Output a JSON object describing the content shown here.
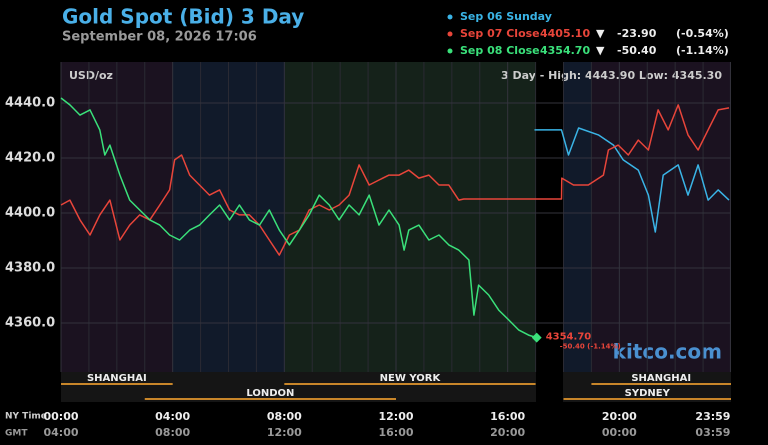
{
  "chart_data": {
    "type": "line",
    "title": "Gold Spot (Bid) 3 Day",
    "subtitle": "September 08, 2026 17:06",
    "unit_label": "USD/oz",
    "high_low_label": "3 Day - High: 4443.90  Low: 4345.30",
    "watermark": "kitco.com",
    "last_label": "4354.70",
    "last_change": "-50.40 (-1.14%)",
    "x_row_label": "NY Time",
    "x2_row_label": "GMT",
    "xlim": [
      0,
      24
    ],
    "ylim": [
      4342.2,
      4454.9
    ],
    "yticks": [
      {
        "value": 4360,
        "label": "4360.0"
      },
      {
        "value": 4380,
        "label": "4380.0"
      },
      {
        "value": 4400,
        "label": "4400.0"
      },
      {
        "value": 4420,
        "label": "4420.0"
      },
      {
        "value": 4440,
        "label": "4440.0"
      }
    ],
    "xticks": [
      {
        "value": 0,
        "label": "00:00"
      },
      {
        "value": 4,
        "label": "04:00"
      },
      {
        "value": 8,
        "label": "08:00"
      },
      {
        "value": 12,
        "label": "12:00"
      },
      {
        "value": 16,
        "label": "16:00"
      },
      {
        "value": 20,
        "label": "20:00"
      },
      {
        "value": 23.98,
        "label": "23:59"
      }
    ],
    "x2ticks": [
      {
        "value": 0,
        "label": "04:00"
      },
      {
        "value": 4,
        "label": "08:00"
      },
      {
        "value": 8,
        "label": "12:00"
      },
      {
        "value": 12,
        "label": "16:00"
      },
      {
        "value": 16,
        "label": "20:00"
      },
      {
        "value": 20,
        "label": "00:00"
      },
      {
        "value": 23.98,
        "label": "03:59"
      }
    ],
    "xminor": [
      1,
      2,
      3,
      5,
      6,
      7,
      9,
      10,
      11,
      13,
      14,
      15,
      17,
      18,
      19,
      21,
      22,
      23
    ],
    "grid": true,
    "session_color": "#c8862a",
    "sessions": [
      {
        "name": "SHANGHAI",
        "start": 0,
        "end": 4,
        "row": 1
      },
      {
        "name": "LONDON",
        "start": 3,
        "end": 12,
        "row": 2
      },
      {
        "name": "NEW YORK",
        "start": 8,
        "end": 17,
        "row": 1
      },
      {
        "name": "SHANGHAI",
        "start": 19,
        "end": 24,
        "row": 1
      },
      {
        "name": "SYDNEY",
        "start": 18,
        "end": 24,
        "row": 2
      }
    ],
    "series": [
      {
        "name": "Sep 06 Sunday",
        "color": "#3ab4e6",
        "x": [
          16.96,
          17.93,
          18.18,
          18.54,
          19.25,
          19.79,
          20.14,
          20.68,
          21.04,
          21.29,
          21.57,
          22.11,
          22.46,
          22.82,
          23.18,
          23.54,
          23.93
        ],
        "values": [
          4430.2,
          4430.2,
          4421.1,
          4430.9,
          4428.4,
          4424.7,
          4419.3,
          4415.6,
          4406.5,
          4393.1,
          4413.8,
          4417.5,
          4406.5,
          4417.5,
          4404.7,
          4408.4,
          4404.7
        ]
      },
      {
        "name": "Sep 07 Close",
        "color": "#e8453a",
        "close": "4405.10",
        "arrow": "▼",
        "change": "-23.90",
        "change_pct": "(-0.54%)",
        "x": [
          0,
          0.32,
          0.68,
          1.04,
          1.39,
          1.75,
          2.11,
          2.46,
          2.82,
          3.18,
          3.54,
          3.89,
          4.07,
          4.32,
          4.61,
          4.96,
          5.32,
          5.68,
          6.04,
          6.39,
          6.75,
          7.11,
          7.46,
          7.82,
          8.18,
          8.54,
          8.89,
          9.25,
          9.61,
          9.96,
          10.32,
          10.68,
          11.04,
          11.39,
          11.75,
          12.11,
          12.46,
          12.82,
          13.18,
          13.54,
          13.89,
          14.25,
          14.43,
          17.93,
          17.94,
          18.36,
          18.89,
          19.43,
          19.61,
          19.96,
          20.32,
          20.68,
          21.04,
          21.39,
          21.75,
          22.11,
          22.46,
          22.82,
          23.18,
          23.54,
          23.93
        ],
        "values": [
          4402.9,
          4404.7,
          4397.5,
          4392.0,
          4399.3,
          4404.7,
          4390.2,
          4395.6,
          4399.3,
          4397.5,
          4402.9,
          4408.4,
          4419.3,
          4421.1,
          4413.8,
          4410.2,
          4406.5,
          4408.4,
          4401.1,
          4399.3,
          4399.3,
          4395.6,
          4390.2,
          4384.7,
          4392.0,
          4393.8,
          4401.1,
          4402.9,
          4401.1,
          4402.9,
          4406.5,
          4417.5,
          4410.2,
          4412.0,
          4413.8,
          4413.8,
          4415.6,
          4412.7,
          4413.8,
          4410.2,
          4410.2,
          4404.7,
          4405.1,
          4405.1,
          4412.7,
          4410.2,
          4410.2,
          4413.8,
          4422.9,
          4424.7,
          4421.1,
          4426.5,
          4422.9,
          4437.5,
          4430.2,
          4439.3,
          4428.4,
          4422.9,
          4430.2,
          4437.5,
          4438.2
        ]
      },
      {
        "name": "Sep 08 Close",
        "color": "#3ae07a",
        "close": "4354.70",
        "arrow": "▼",
        "change": "-50.40",
        "change_pct": "(-1.14%)",
        "x": [
          0,
          0.32,
          0.68,
          1.04,
          1.39,
          1.57,
          1.75,
          2.11,
          2.46,
          2.82,
          3.18,
          3.54,
          3.89,
          4.25,
          4.61,
          4.96,
          5.32,
          5.68,
          6.04,
          6.39,
          6.75,
          7.11,
          7.46,
          7.82,
          8.18,
          8.54,
          8.89,
          9.25,
          9.61,
          9.96,
          10.32,
          10.68,
          11.04,
          11.39,
          11.75,
          12.11,
          12.29,
          12.46,
          12.82,
          13.18,
          13.54,
          13.89,
          14.25,
          14.61,
          14.79,
          14.96,
          15.32,
          15.68,
          16.04,
          16.39,
          16.75,
          17.04
        ],
        "values": [
          4441.8,
          4439.3,
          4435.6,
          4437.5,
          4430.2,
          4421.1,
          4424.7,
          4413.8,
          4404.7,
          4401.1,
          4397.5,
          4395.6,
          4392.0,
          4390.2,
          4393.8,
          4395.6,
          4399.3,
          4402.9,
          4397.5,
          4402.9,
          4397.5,
          4395.6,
          4401.1,
          4393.8,
          4388.4,
          4393.8,
          4399.3,
          4406.5,
          4402.9,
          4397.5,
          4402.9,
          4399.3,
          4406.5,
          4395.6,
          4401.1,
          4395.6,
          4386.5,
          4393.8,
          4395.6,
          4390.2,
          4392.0,
          4388.4,
          4386.5,
          4382.9,
          4362.9,
          4373.8,
          4370.2,
          4364.7,
          4361.1,
          4357.5,
          4355.6,
          4354.7
        ]
      }
    ]
  }
}
